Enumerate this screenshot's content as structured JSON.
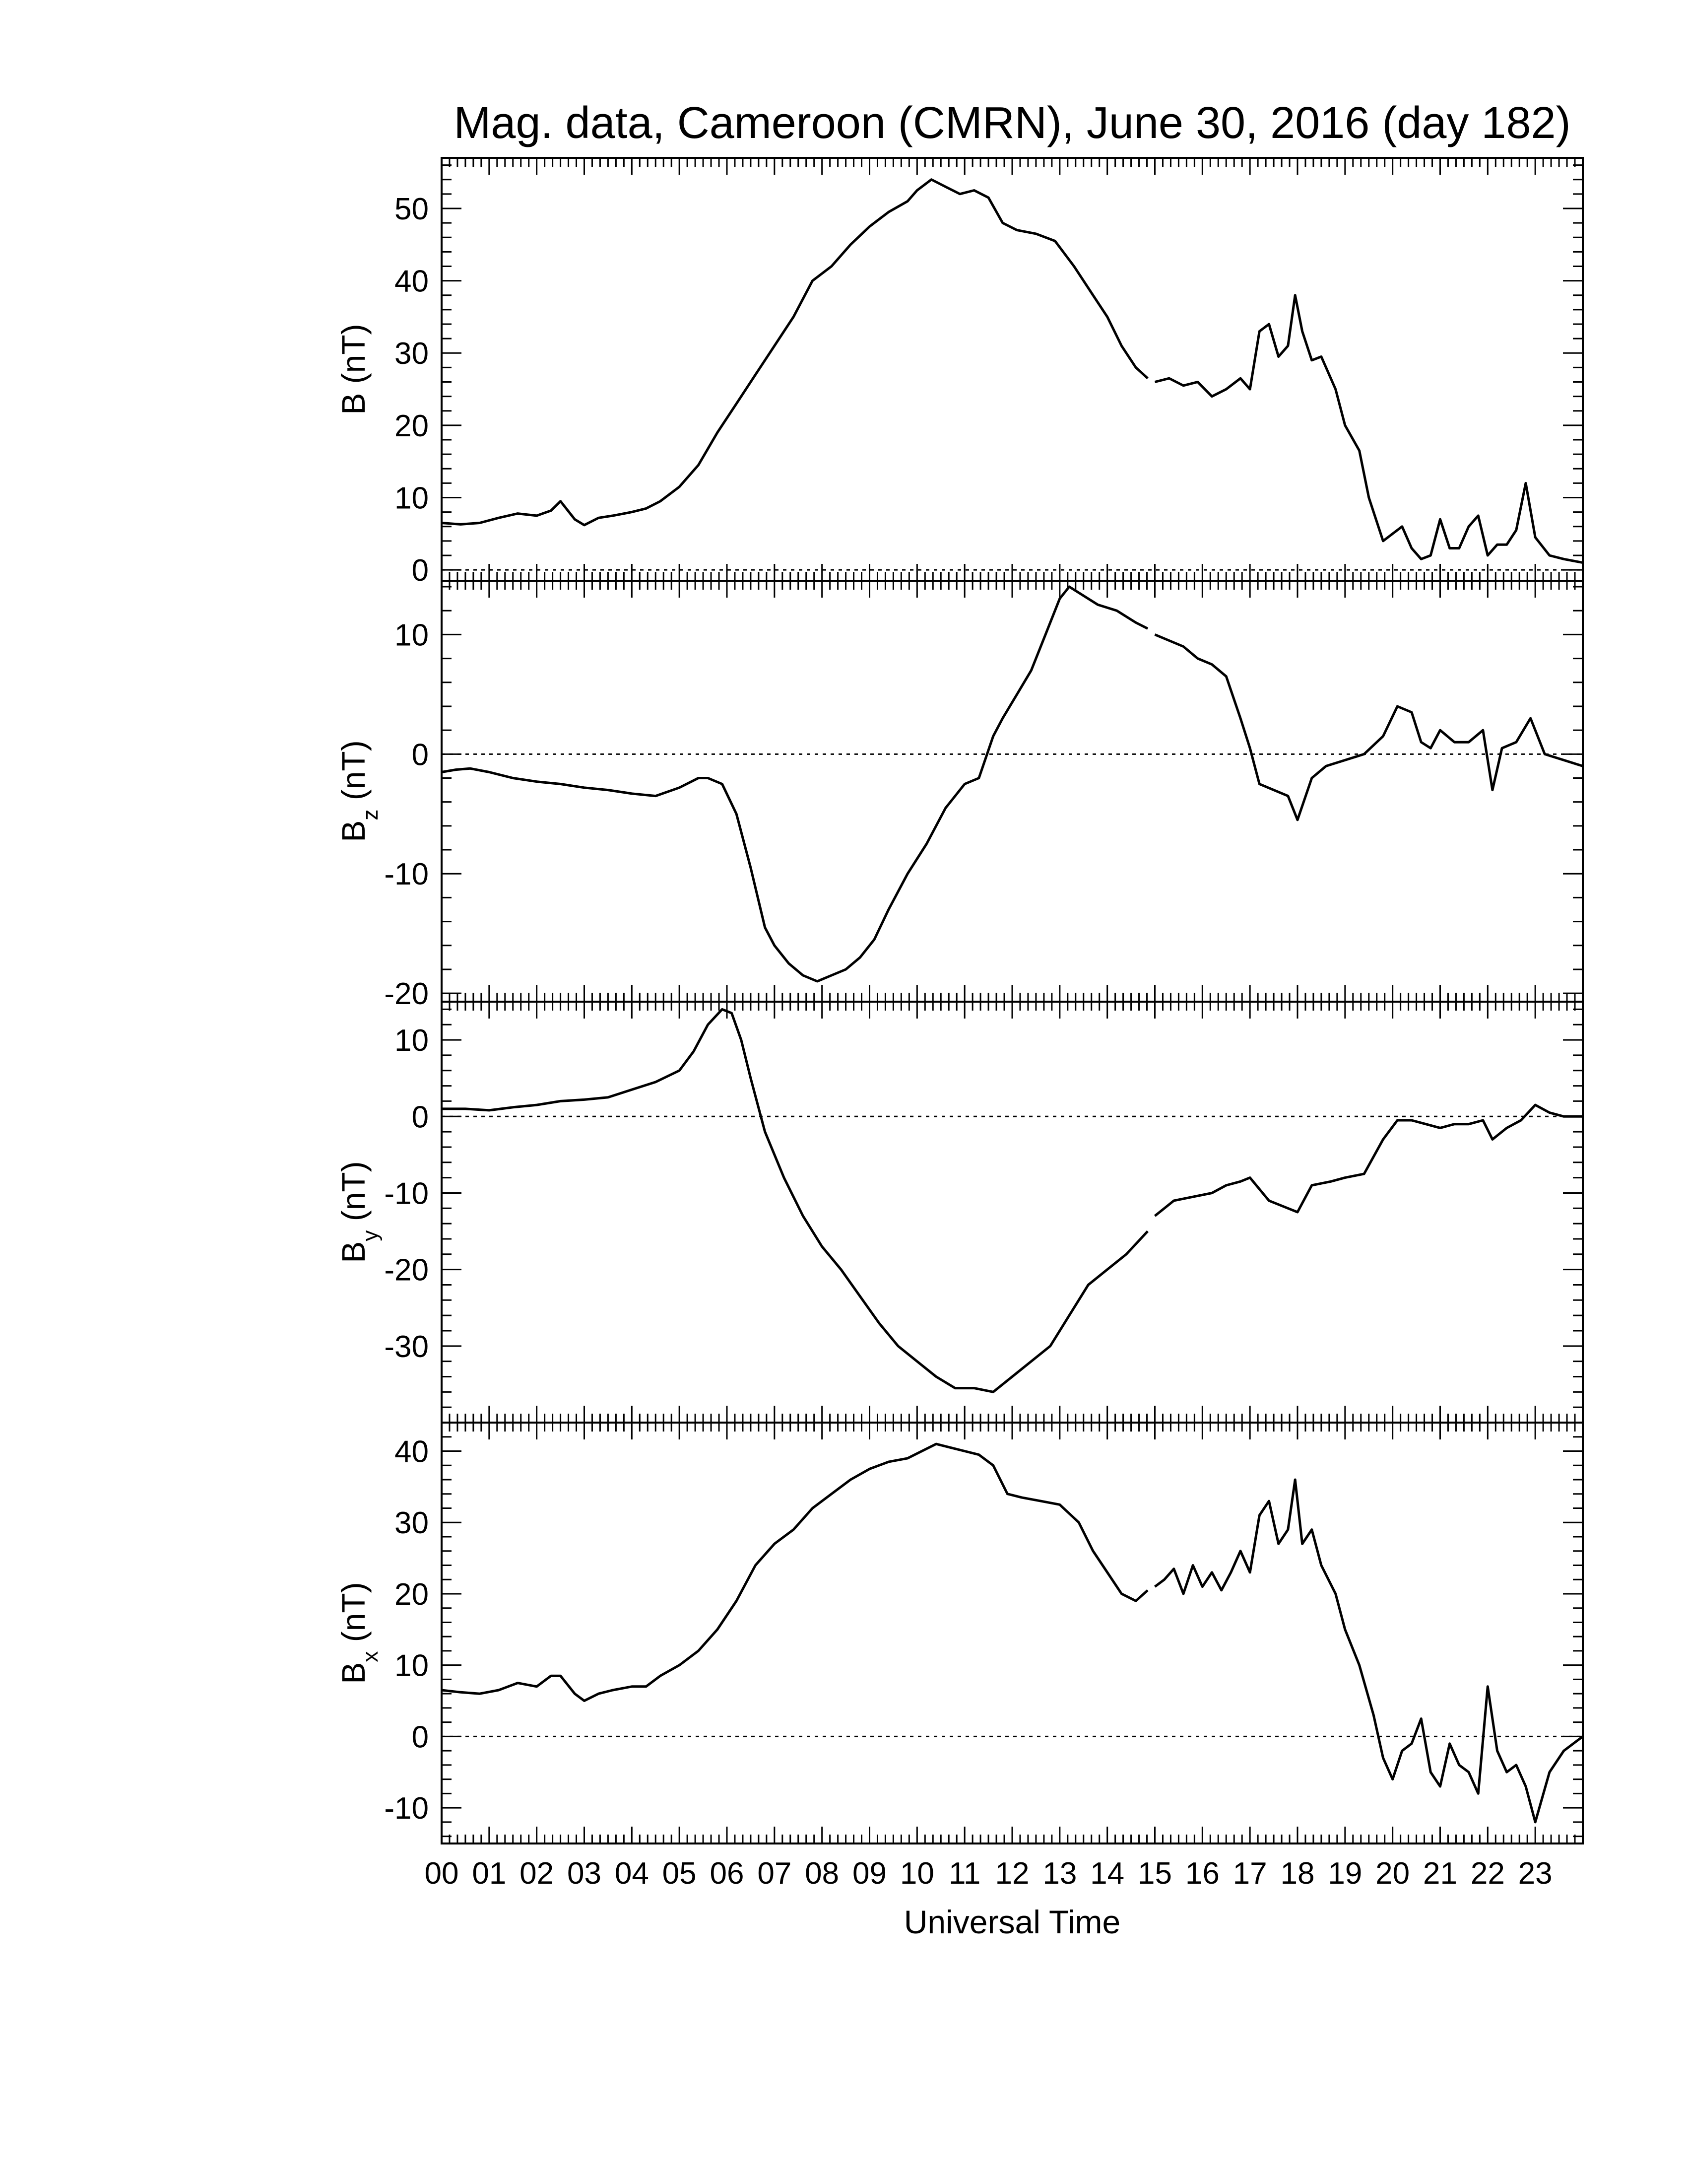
{
  "chart_data": {
    "type": "line",
    "title": "Mag. data, Cameroon (CMRN), June 30, 2016 (day 182)",
    "xlabel": "Universal Time",
    "xlim": [
      0,
      24
    ],
    "x_tick_labels": [
      "00",
      "01",
      "02",
      "03",
      "04",
      "05",
      "06",
      "07",
      "08",
      "09",
      "10",
      "11",
      "12",
      "13",
      "14",
      "15",
      "16",
      "17",
      "18",
      "19",
      "20",
      "21",
      "22",
      "23"
    ],
    "grid": false,
    "zero_reference_line": "dotted",
    "line_color": "#000000",
    "panels": [
      {
        "id": "B",
        "ylabel": "B (nT)",
        "ylabel_main": "B (nT)",
        "ylabel_sub": "",
        "ylim": [
          -1.5,
          57
        ],
        "yticks": [
          0,
          10,
          20,
          30,
          40,
          50
        ],
        "series": [
          {
            "x": [
              0.0,
              0.4,
              0.8,
              1.2,
              1.6,
              2.0,
              2.3,
              2.5,
              2.8,
              3.0,
              3.3,
              3.6,
              4.0,
              4.3,
              4.6,
              5.0,
              5.4,
              5.8,
              6.2,
              6.6,
              7.0,
              7.4,
              7.8,
              8.2,
              8.6,
              9.0,
              9.4,
              9.8,
              10.0,
              10.3,
              10.6,
              10.9,
              11.2,
              11.5,
              11.8,
              12.1,
              12.5,
              12.9,
              13.3,
              13.7,
              14.0,
              14.3,
              14.6,
              14.85
            ],
            "y": [
              6.5,
              6.3,
              6.5,
              7.2,
              7.8,
              7.5,
              8.2,
              9.5,
              7.0,
              6.2,
              7.2,
              7.5,
              8.0,
              8.5,
              9.5,
              11.5,
              14.5,
              19.0,
              23.0,
              27.0,
              31.0,
              35.0,
              40.0,
              42.0,
              45.0,
              47.5,
              49.5,
              51.0,
              52.5,
              54.0,
              53.0,
              52.0,
              52.5,
              51.5,
              48.0,
              47.0,
              46.5,
              45.5,
              42.0,
              38.0,
              35.0,
              31.0,
              28.0,
              26.5
            ]
          },
          {
            "x": [
              15.0,
              15.3,
              15.6,
              15.9,
              16.2,
              16.5,
              16.8,
              17.0,
              17.2,
              17.4,
              17.6,
              17.8,
              17.95,
              18.1,
              18.3,
              18.5,
              18.8,
              19.0,
              19.3,
              19.5,
              19.8,
              20.0,
              20.2,
              20.4,
              20.6,
              20.8,
              21.0,
              21.2,
              21.4,
              21.6,
              21.8,
              22.0,
              22.2,
              22.4,
              22.6,
              22.8,
              23.0,
              23.3,
              23.6,
              24.0
            ],
            "y": [
              26.0,
              26.5,
              25.5,
              26.0,
              24.0,
              25.0,
              26.5,
              25.0,
              33.0,
              34.0,
              29.5,
              31.0,
              38.0,
              33.0,
              29.0,
              29.5,
              25.0,
              20.0,
              16.5,
              10.0,
              4.0,
              5.0,
              6.0,
              3.0,
              1.5,
              2.0,
              7.0,
              3.0,
              3.0,
              6.0,
              7.5,
              2.0,
              3.5,
              3.5,
              5.5,
              12.0,
              4.5,
              2.0,
              1.5,
              1.0
            ]
          }
        ]
      },
      {
        "id": "Bz",
        "ylabel": "Bz (nT)",
        "ylabel_main": "B",
        "ylabel_sub": "z",
        "ylabel_unit": "(nT)",
        "ylim": [
          -20.7,
          14.5
        ],
        "yticks": [
          -20,
          -10,
          0,
          10
        ],
        "series": [
          {
            "x": [
              0.0,
              0.3,
              0.6,
              1.0,
              1.5,
              2.0,
              2.5,
              3.0,
              3.5,
              4.0,
              4.5,
              5.0,
              5.4,
              5.6,
              5.9,
              6.2,
              6.5,
              6.8,
              7.0,
              7.3,
              7.6,
              7.9,
              8.2,
              8.5,
              8.8,
              9.1,
              9.4,
              9.8,
              10.2,
              10.6,
              11.0,
              11.3,
              11.6,
              11.8,
              12.1,
              12.4,
              12.7,
              13.0,
              13.2,
              13.4,
              13.8,
              14.2,
              14.6,
              14.85
            ],
            "y": [
              -1.5,
              -1.3,
              -1.2,
              -1.5,
              -2.0,
              -2.3,
              -2.5,
              -2.8,
              -3.0,
              -3.3,
              -3.5,
              -2.8,
              -2.0,
              -2.0,
              -2.5,
              -5.0,
              -9.5,
              -14.5,
              -16.0,
              -17.5,
              -18.5,
              -19.0,
              -18.5,
              -18.0,
              -17.0,
              -15.5,
              -13.0,
              -10.0,
              -7.5,
              -4.5,
              -2.5,
              -2.0,
              1.5,
              3.0,
              5.0,
              7.0,
              10.0,
              13.0,
              14.0,
              13.5,
              12.5,
              12.0,
              11.0,
              10.5
            ]
          },
          {
            "x": [
              15.0,
              15.3,
              15.6,
              15.9,
              16.2,
              16.5,
              16.8,
              17.0,
              17.2,
              17.5,
              17.8,
              18.0,
              18.3,
              18.6,
              19.0,
              19.4,
              19.8,
              20.1,
              20.4,
              20.6,
              20.8,
              21.0,
              21.3,
              21.6,
              21.9,
              22.1,
              22.3,
              22.6,
              22.9,
              23.2,
              23.6,
              24.0
            ],
            "y": [
              10.0,
              9.5,
              9.0,
              8.0,
              7.5,
              6.5,
              3.0,
              0.5,
              -2.5,
              -3.0,
              -3.5,
              -5.5,
              -2.0,
              -1.0,
              -0.5,
              0.0,
              1.5,
              4.0,
              3.5,
              1.0,
              0.5,
              2.0,
              1.0,
              1.0,
              2.0,
              -3.0,
              0.5,
              1.0,
              3.0,
              0.0,
              -0.5,
              -1.0
            ]
          }
        ]
      },
      {
        "id": "By",
        "ylabel": "By (nT)",
        "ylabel_main": "B",
        "ylabel_sub": "y",
        "ylabel_unit": "(nT)",
        "ylim": [
          -40,
          15
        ],
        "yticks": [
          -30,
          -20,
          -10,
          0,
          10
        ],
        "series": [
          {
            "x": [
              0.0,
              0.5,
              1.0,
              1.5,
              2.0,
              2.5,
              3.0,
              3.5,
              4.0,
              4.5,
              5.0,
              5.3,
              5.6,
              5.9,
              6.1,
              6.3,
              6.5,
              6.8,
              7.2,
              7.6,
              8.0,
              8.4,
              8.8,
              9.2,
              9.6,
              10.0,
              10.4,
              10.8,
              11.2,
              11.6,
              12.0,
              12.4,
              12.8,
              13.2,
              13.6,
              14.0,
              14.4,
              14.85
            ],
            "y": [
              1.0,
              1.0,
              0.8,
              1.2,
              1.5,
              2.0,
              2.2,
              2.5,
              3.5,
              4.5,
              6.0,
              8.5,
              12.0,
              14.0,
              13.5,
              10.0,
              5.0,
              -2.0,
              -8.0,
              -13.0,
              -17.0,
              -20.0,
              -23.5,
              -27.0,
              -30.0,
              -32.0,
              -34.0,
              -35.5,
              -35.5,
              -36.0,
              -34.0,
              -32.0,
              -30.0,
              -26.0,
              -22.0,
              -20.0,
              -18.0,
              -15.0
            ]
          },
          {
            "x": [
              15.0,
              15.4,
              15.8,
              16.2,
              16.5,
              16.8,
              17.0,
              17.4,
              17.8,
              18.0,
              18.3,
              18.7,
              19.0,
              19.4,
              19.8,
              20.1,
              20.4,
              20.7,
              21.0,
              21.3,
              21.6,
              21.9,
              22.1,
              22.4,
              22.7,
              23.0,
              23.3,
              23.6,
              24.0
            ],
            "y": [
              -13.0,
              -11.0,
              -10.5,
              -10.0,
              -9.0,
              -8.5,
              -8.0,
              -11.0,
              -12.0,
              -12.5,
              -9.0,
              -8.5,
              -8.0,
              -7.5,
              -3.0,
              -0.5,
              -0.5,
              -1.0,
              -1.5,
              -1.0,
              -1.0,
              -0.5,
              -3.0,
              -1.5,
              -0.5,
              1.5,
              0.5,
              0.0,
              0.0
            ]
          }
        ]
      },
      {
        "id": "Bx",
        "ylabel": "Bx (nT)",
        "ylabel_main": "B",
        "ylabel_sub": "x",
        "ylabel_unit": "(nT)",
        "ylim": [
          -15,
          44
        ],
        "yticks": [
          -10,
          0,
          10,
          20,
          30,
          40
        ],
        "series": [
          {
            "x": [
              0.0,
              0.4,
              0.8,
              1.2,
              1.6,
              2.0,
              2.3,
              2.5,
              2.8,
              3.0,
              3.3,
              3.6,
              4.0,
              4.3,
              4.6,
              5.0,
              5.4,
              5.8,
              6.2,
              6.6,
              7.0,
              7.4,
              7.8,
              8.2,
              8.6,
              9.0,
              9.4,
              9.8,
              10.1,
              10.4,
              10.7,
              11.0,
              11.3,
              11.6,
              11.9,
              12.2,
              12.6,
              13.0,
              13.4,
              13.7,
              14.0,
              14.3,
              14.6,
              14.85
            ],
            "y": [
              6.5,
              6.2,
              6.0,
              6.5,
              7.5,
              7.0,
              8.5,
              8.5,
              6.0,
              5.0,
              6.0,
              6.5,
              7.0,
              7.0,
              8.5,
              10.0,
              12.0,
              15.0,
              19.0,
              24.0,
              27.0,
              29.0,
              32.0,
              34.0,
              36.0,
              37.5,
              38.5,
              39.0,
              40.0,
              41.0,
              40.5,
              40.0,
              39.5,
              38.0,
              34.0,
              33.5,
              33.0,
              32.5,
              30.0,
              26.0,
              23.0,
              20.0,
              19.0,
              20.5
            ]
          },
          {
            "x": [
              15.0,
              15.2,
              15.4,
              15.6,
              15.8,
              16.0,
              16.2,
              16.4,
              16.6,
              16.8,
              17.0,
              17.2,
              17.4,
              17.6,
              17.8,
              17.95,
              18.1,
              18.3,
              18.5,
              18.8,
              19.0,
              19.3,
              19.6,
              19.8,
              20.0,
              20.2,
              20.4,
              20.6,
              20.8,
              21.0,
              21.2,
              21.4,
              21.6,
              21.8,
              22.0,
              22.2,
              22.4,
              22.6,
              22.8,
              23.0,
              23.3,
              23.6,
              24.0
            ],
            "y": [
              21.0,
              22.0,
              23.5,
              20.0,
              24.0,
              21.0,
              23.0,
              20.5,
              23.0,
              26.0,
              23.0,
              31.0,
              33.0,
              27.0,
              29.0,
              36.0,
              27.0,
              29.0,
              24.0,
              20.0,
              15.0,
              10.0,
              3.0,
              -3.0,
              -6.0,
              -2.0,
              -1.0,
              2.5,
              -5.0,
              -7.0,
              -1.0,
              -4.0,
              -5.0,
              -8.0,
              7.0,
              -2.0,
              -5.0,
              -4.0,
              -7.0,
              -12.0,
              -5.0,
              -2.0,
              0.0
            ]
          }
        ]
      }
    ]
  }
}
